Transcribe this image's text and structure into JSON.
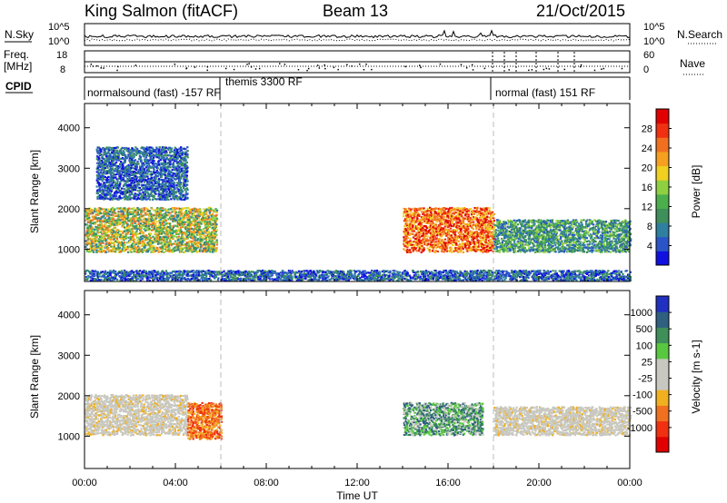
{
  "header": {
    "title": "King Salmon (fitACF)",
    "beam": "Beam 13",
    "date": "21/Oct/2015"
  },
  "labels": {
    "nsky": "N.Sky",
    "nsearch": "N.Search",
    "freq": "Freq.",
    "freq_unit": "[MHz]",
    "nave": "Nave",
    "cpid": "CPID",
    "time_axis": "Time UT",
    "slant_range": "Slant Range [km]"
  },
  "noise_axis": {
    "top": "10^5",
    "bottom": "10^0"
  },
  "freq_axis": {
    "left_ticks": [
      "18",
      "8"
    ],
    "right_ticks": [
      "60",
      "0"
    ]
  },
  "cpid_segments": [
    {
      "label": "normalsound (fast) -157 RF",
      "start_hour": 0
    },
    {
      "label": "themis 3300 RF",
      "start_hour": 6
    },
    {
      "label": "normal (fast) 151 RF",
      "start_hour": 18
    }
  ],
  "chart_data": [
    {
      "type": "heatmap",
      "name": "Power",
      "ylabel": "Slant Range [km]",
      "xlabel": "Time UT",
      "xlim_hours": [
        0,
        24
      ],
      "ylim": [
        200,
        4600
      ],
      "x_ticks": [
        "00:00",
        "04:00",
        "08:00",
        "12:00",
        "16:00",
        "20:00",
        "00:00"
      ],
      "y_ticks": [
        1000,
        2000,
        3000,
        4000
      ],
      "colorbar": {
        "label": "Power [dB]",
        "ticks": [
          4,
          8,
          12,
          16,
          20,
          24,
          28
        ],
        "colors": [
          "#1010e0",
          "#2a55c8",
          "#2f7fa0",
          "#3e8f5a",
          "#4bb04b",
          "#8fd040",
          "#f0d020",
          "#f5a020",
          "#f07020",
          "#f03010",
          "#e00000"
        ]
      },
      "echo_regions": [
        {
          "t_start": 0.0,
          "t_end": 5.8,
          "range_low": 900,
          "range_high": 2000,
          "level": "medium-high"
        },
        {
          "t_start": 0.5,
          "t_end": 4.5,
          "range_low": 2200,
          "range_high": 3500,
          "level": "low"
        },
        {
          "t_start": 14.0,
          "t_end": 18.0,
          "range_low": 900,
          "range_high": 2000,
          "level": "high"
        },
        {
          "t_start": 18.0,
          "t_end": 24.0,
          "range_low": 900,
          "range_high": 1700,
          "level": "medium"
        },
        {
          "t_start": 0.0,
          "t_end": 24.0,
          "range_low": 200,
          "range_high": 450,
          "level": "low"
        }
      ]
    },
    {
      "type": "heatmap",
      "name": "Velocity",
      "ylabel": "Slant Range [km]",
      "xlabel": "Time UT",
      "xlim_hours": [
        0,
        24
      ],
      "ylim": [
        200,
        4600
      ],
      "x_ticks": [
        "00:00",
        "04:00",
        "08:00",
        "12:00",
        "16:00",
        "20:00",
        "00:00"
      ],
      "y_ticks": [
        1000,
        2000,
        3000,
        4000
      ],
      "colorbar": {
        "label": "Velocity [m s-1]",
        "ticks": [
          "1000",
          "500",
          "100",
          "25",
          "-25",
          "-100",
          "-500",
          "-1000"
        ],
        "colors": [
          "#2030c0",
          "#2f6080",
          "#3e8f5a",
          "#58c840",
          "#c8c8c0",
          "#c8c8c0",
          "#f0b020",
          "#f07020",
          "#f03010",
          "#e00000"
        ]
      },
      "echo_regions": [
        {
          "t_start": 0.0,
          "t_end": 4.5,
          "range_low": 1000,
          "range_high": 2000,
          "level": "ground-scatter"
        },
        {
          "t_start": 4.5,
          "t_end": 6.0,
          "range_low": 900,
          "range_high": 1800,
          "level": "negative"
        },
        {
          "t_start": 14.0,
          "t_end": 17.5,
          "range_low": 1000,
          "range_high": 1800,
          "level": "positive"
        },
        {
          "t_start": 18.0,
          "t_end": 24.0,
          "range_low": 1000,
          "range_high": 1700,
          "level": "ground-scatter"
        }
      ]
    }
  ]
}
